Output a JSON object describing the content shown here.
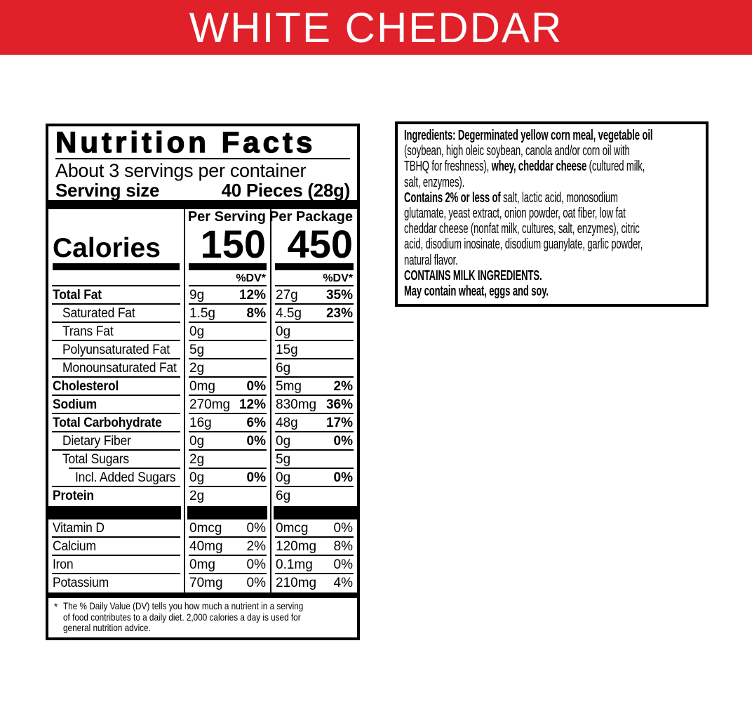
{
  "colors": {
    "banner_bg": "#e0212a",
    "banner_text": "#ffffff",
    "label_fg": "#000000",
    "label_bg": "#ffffff"
  },
  "banner": {
    "title": "WHITE CHEDDAR"
  },
  "nutrition": {
    "title": "Nutrition Facts",
    "servings_per_container": "About 3 servings per container",
    "serving_size_label": "Serving size",
    "serving_size_value": "40 Pieces (28g)",
    "calories_label": "Calories",
    "columns": [
      {
        "header": "Per Serving",
        "calories": "150",
        "dv_header": "%DV*"
      },
      {
        "header": "Per Package",
        "calories": "450",
        "dv_header": "%DV*"
      }
    ],
    "rows": [
      {
        "label": "Total Fat",
        "style": "bold",
        "v1": "9g",
        "p1": "12%",
        "v2": "27g",
        "p2": "35%"
      },
      {
        "label": "Saturated Fat",
        "style": "indent",
        "v1": "1.5g",
        "p1": "8%",
        "v2": "4.5g",
        "p2": "23%"
      },
      {
        "label": "Trans Fat",
        "style": "indent",
        "v1": "0g",
        "p1": "",
        "v2": "0g",
        "p2": ""
      },
      {
        "label": "Polyunsaturated Fat",
        "style": "indent",
        "v1": "5g",
        "p1": "",
        "v2": "15g",
        "p2": ""
      },
      {
        "label": "Monounsaturated Fat",
        "style": "indent",
        "v1": "2g",
        "p1": "",
        "v2": "6g",
        "p2": ""
      },
      {
        "label": "Cholesterol",
        "style": "bold",
        "v1": "0mg",
        "p1": "0%",
        "v2": "5mg",
        "p2": "2%"
      },
      {
        "label": "Sodium",
        "style": "bold",
        "v1": "270mg",
        "p1": "12%",
        "v2": "830mg",
        "p2": "36%"
      },
      {
        "label": "Total Carbohydrate",
        "style": "bold",
        "v1": "16g",
        "p1": "6%",
        "v2": "48g",
        "p2": "17%"
      },
      {
        "label": "Dietary Fiber",
        "style": "indent",
        "v1": "0g",
        "p1": "0%",
        "v2": "0g",
        "p2": "0%"
      },
      {
        "label": "Total Sugars",
        "style": "indent",
        "v1": "2g",
        "p1": "",
        "v2": "5g",
        "p2": "",
        "sub_rule": true
      },
      {
        "label": "Incl. Added Sugars",
        "style": "indent2",
        "v1": "0g",
        "p1": "0%",
        "v2": "0g",
        "p2": "0%"
      },
      {
        "label": "Protein",
        "style": "bold",
        "v1": "2g",
        "p1": "",
        "v2": "6g",
        "p2": ""
      }
    ],
    "vitamin_rows": [
      {
        "label": "Vitamin D",
        "v1": "0mcg",
        "p1": "0%",
        "v2": "0mcg",
        "p2": "0%"
      },
      {
        "label": "Calcium",
        "v1": "40mg",
        "p1": "2%",
        "v2": "120mg",
        "p2": "8%"
      },
      {
        "label": "Iron",
        "v1": "0mg",
        "p1": "0%",
        "v2": "0.1mg",
        "p2": "0%"
      },
      {
        "label": "Potassium",
        "v1": "70mg",
        "p1": "0%",
        "v2": "210mg",
        "p2": "4%"
      }
    ],
    "footnote_marker": "*",
    "footnote_lines": [
      "The % Daily Value (DV) tells you how much a nutrient in a serving",
      "of food contributes to a daily diet. 2,000 calories a day is used for",
      "general nutrition advice."
    ],
    "footnote": "The % Daily Value (DV) tells you how much a nutrient in a serving of food contributes to a daily diet. 2,000 calories a day is used for general nutrition advice."
  },
  "ingredients": {
    "lines": [
      [
        {
          "t": "Ingredients: Degerminated yellow corn meal, vegetable oil",
          "b": true
        }
      ],
      [
        {
          "t": "(soybean, high oleic soybean, canola and/or corn oil with",
          "b": false
        }
      ],
      [
        {
          "t": "TBHQ for freshness), ",
          "b": false
        },
        {
          "t": "whey, cheddar cheese",
          "b": true
        },
        {
          "t": " (cultured milk,",
          "b": false
        }
      ],
      [
        {
          "t": "salt, enzymes).",
          "b": false
        }
      ],
      [
        {
          "t": "Contains 2% or less of",
          "b": true
        },
        {
          "t": " salt, lactic acid, monosodium",
          "b": false
        }
      ],
      [
        {
          "t": "glutamate, yeast extract, onion powder, oat fiber, low fat",
          "b": false
        }
      ],
      [
        {
          "t": "cheddar cheese (nonfat milk, cultures, salt, enzymes), citric",
          "b": false
        }
      ],
      [
        {
          "t": "acid, disodium inosinate, disodium guanylate, garlic powder,",
          "b": false
        }
      ],
      [
        {
          "t": "natural flavor.",
          "b": false
        }
      ],
      [
        {
          "t": "CONTAINS MILK INGREDIENTS.",
          "b": true
        }
      ],
      [
        {
          "t": "May contain wheat, eggs and soy.",
          "b": true
        }
      ]
    ]
  }
}
